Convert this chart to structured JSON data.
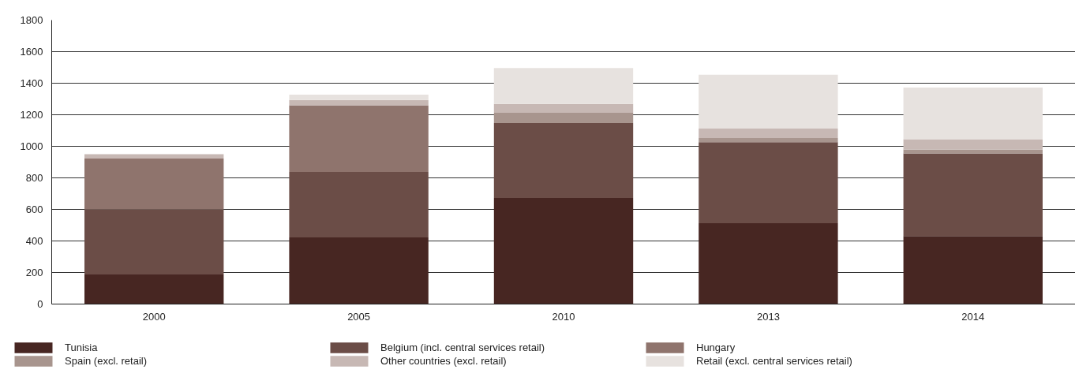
{
  "chart_data": {
    "type": "bar",
    "stacked": true,
    "categories": [
      "2000",
      "2005",
      "2010",
      "2013",
      "2014"
    ],
    "series": [
      {
        "name": "Tunisia",
        "color": "#472622",
        "values": [
          187,
          423,
          673,
          513,
          431
        ]
      },
      {
        "name": "Belgium (incl. central services retail)",
        "color": "#6b4d47",
        "values": [
          413,
          414,
          475,
          513,
          524
        ]
      },
      {
        "name": "Hungary",
        "color": "#8f746d",
        "values": [
          322,
          423,
          0,
          0,
          0
        ]
      },
      {
        "name": "Spain (excl. retail)",
        "color": "#a8958e",
        "values": [
          0,
          0,
          65,
          27,
          25
        ]
      },
      {
        "name": "Other countries (excl. retail)",
        "color": "#c7b8b4",
        "values": [
          28,
          34,
          56,
          59,
          65
        ]
      },
      {
        "name": "Retail (excl. central services retail)",
        "color": "#e7e2df",
        "values": [
          0,
          34,
          227,
          342,
          327
        ]
      }
    ],
    "ylim": [
      0,
      1800
    ],
    "yticks": [
      0,
      200,
      400,
      600,
      800,
      1000,
      1200,
      1400,
      1600,
      1800
    ],
    "grid": "y",
    "legend": "bottom"
  }
}
